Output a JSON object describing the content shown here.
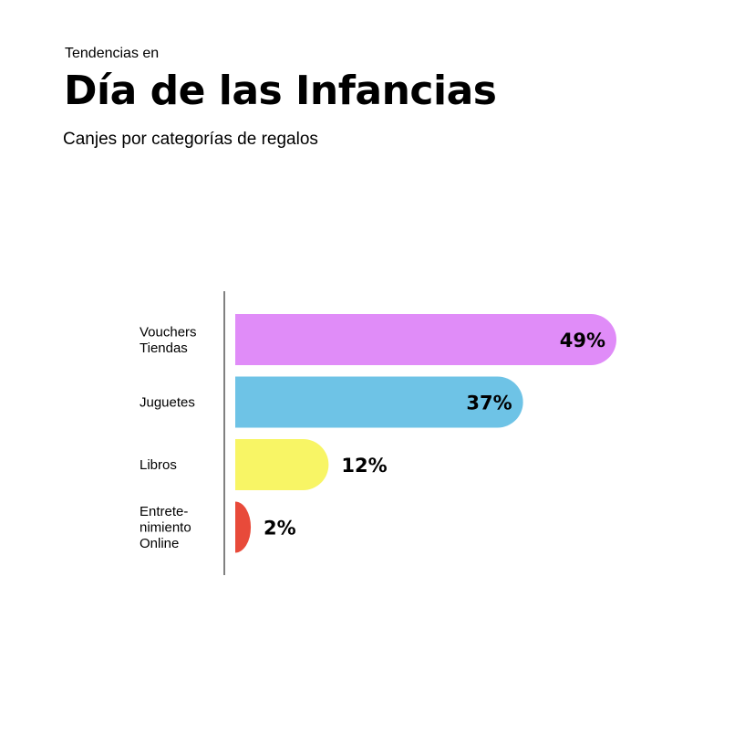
{
  "header": {
    "kicker": "Tendencias en",
    "title": "Día de las Infancias",
    "subtitle": "Canjes por categorías de regalos"
  },
  "chart_data": {
    "type": "bar",
    "orientation": "horizontal",
    "categories": [
      [
        "Vouchers",
        "Tiendas"
      ],
      [
        "Juguetes"
      ],
      [
        "Libros"
      ],
      [
        "Entrete-",
        "nimiento",
        "Online"
      ]
    ],
    "values": [
      49,
      37,
      12,
      2
    ],
    "value_labels": [
      "49%",
      "37%",
      "12%",
      "2%"
    ],
    "colors": [
      "#e08cf8",
      "#6ec3e6",
      "#f8f565",
      "#e84a3a"
    ],
    "xlim": [
      0,
      49
    ],
    "grid": false
  }
}
